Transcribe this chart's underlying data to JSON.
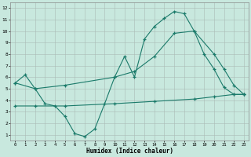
{
  "xlabel": "Humidex (Indice chaleur)",
  "background_color": "#c8e8de",
  "line_color": "#1a7a6a",
  "xlim": [
    -0.5,
    23.5
  ],
  "ylim": [
    0.5,
    12.5
  ],
  "xticks": [
    0,
    1,
    2,
    3,
    4,
    5,
    6,
    7,
    8,
    9,
    10,
    11,
    12,
    13,
    14,
    15,
    16,
    17,
    18,
    19,
    20,
    21,
    22,
    23
  ],
  "yticks": [
    1,
    2,
    3,
    4,
    5,
    6,
    7,
    8,
    9,
    10,
    11,
    12
  ],
  "curve1_x": [
    0,
    1,
    2,
    3,
    4,
    5,
    6,
    7,
    8,
    9,
    10,
    11,
    12,
    13,
    14,
    15,
    16,
    17,
    18,
    19,
    20,
    21,
    22,
    23
  ],
  "curve1_y": [
    5.5,
    6.2,
    5.0,
    3.7,
    3.5,
    2.6,
    1.1,
    0.85,
    1.5,
    3.7,
    6.0,
    7.8,
    6.0,
    9.3,
    10.4,
    11.1,
    11.7,
    11.5,
    10.0,
    8.0,
    6.7,
    5.1,
    4.5,
    4.5
  ],
  "curve2_x": [
    0,
    2,
    5,
    10,
    12,
    14,
    16,
    18,
    20,
    21,
    22,
    23
  ],
  "curve2_y": [
    5.5,
    5.0,
    5.3,
    6.0,
    6.5,
    7.8,
    9.8,
    10.0,
    8.0,
    6.7,
    5.3,
    4.5
  ],
  "curve3_x": [
    0,
    2,
    5,
    10,
    14,
    18,
    20,
    22,
    23
  ],
  "curve3_y": [
    3.5,
    3.5,
    3.5,
    3.7,
    3.9,
    4.1,
    4.3,
    4.5,
    4.5
  ]
}
